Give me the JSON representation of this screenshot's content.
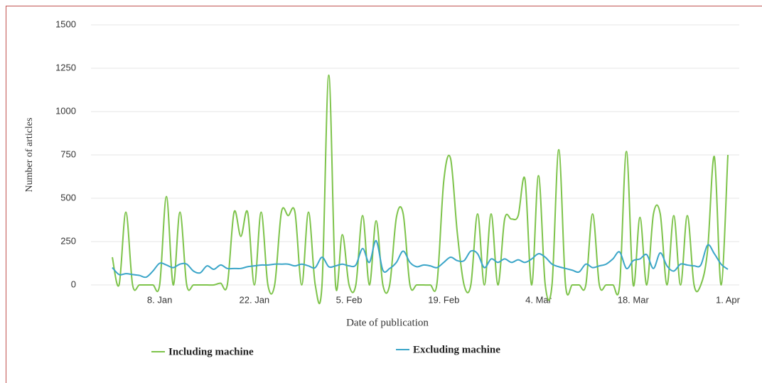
{
  "chart_data": {
    "type": "line",
    "y_label": "Number of  articles",
    "x_label": "Date of publication",
    "categories": [
      null,
      null,
      null,
      null,
      null,
      null,
      null,
      "8. Jan",
      null,
      null,
      null,
      null,
      null,
      null,
      null,
      null,
      null,
      null,
      null,
      null,
      null,
      "22. Jan",
      null,
      null,
      null,
      null,
      null,
      null,
      null,
      null,
      null,
      null,
      null,
      null,
      null,
      "5. Feb",
      null,
      null,
      null,
      null,
      null,
      null,
      null,
      null,
      null,
      null,
      null,
      null,
      null,
      "19. Feb",
      null,
      null,
      null,
      null,
      null,
      null,
      null,
      null,
      null,
      null,
      null,
      null,
      null,
      "4. Mar",
      null,
      null,
      null,
      null,
      null,
      null,
      null,
      null,
      null,
      null,
      null,
      null,
      null,
      "18. Mar",
      null,
      null,
      null,
      null,
      null,
      null,
      null,
      null,
      null,
      null,
      null,
      null,
      null,
      "1. Apr"
    ],
    "series": [
      {
        "name": "Including machine",
        "color": "#7dc34a",
        "values": [
          160,
          0,
          420,
          0,
          0,
          0,
          0,
          0,
          510,
          0,
          420,
          0,
          0,
          0,
          0,
          0,
          10,
          0,
          420,
          280,
          420,
          0,
          420,
          0,
          0,
          420,
          400,
          420,
          0,
          420,
          0,
          0,
          1210,
          0,
          290,
          0,
          0,
          400,
          0,
          370,
          0,
          0,
          390,
          410,
          0,
          0,
          0,
          0,
          10,
          600,
          730,
          300,
          0,
          0,
          410,
          0,
          410,
          0,
          380,
          380,
          400,
          610,
          0,
          630,
          0,
          0,
          780,
          0,
          0,
          0,
          0,
          410,
          0,
          0,
          0,
          0,
          770,
          0,
          390,
          0,
          410,
          410,
          0,
          400,
          0,
          400,
          0,
          0,
          200,
          740,
          0,
          750
        ]
      },
      {
        "name": "Excluding machine",
        "color": "#3aa5c8",
        "values": [
          100,
          60,
          65,
          60,
          55,
          45,
          80,
          125,
          115,
          100,
          120,
          120,
          80,
          70,
          110,
          90,
          115,
          95,
          95,
          95,
          105,
          110,
          115,
          115,
          120,
          120,
          120,
          110,
          120,
          110,
          100,
          160,
          105,
          110,
          120,
          110,
          115,
          210,
          130,
          255,
          85,
          95,
          130,
          195,
          130,
          105,
          115,
          110,
          100,
          130,
          160,
          140,
          140,
          195,
          180,
          100,
          150,
          130,
          150,
          130,
          145,
          130,
          150,
          180,
          160,
          120,
          105,
          95,
          85,
          75,
          120,
          100,
          110,
          120,
          150,
          190,
          95,
          140,
          150,
          175,
          95,
          185,
          110,
          80,
          120,
          115,
          110,
          115,
          230,
          180,
          120,
          90
        ]
      }
    ],
    "ylim": [
      0,
      1500
    ],
    "yticks": [
      0,
      250,
      500,
      750,
      1000,
      1250,
      1500
    ],
    "grid": true
  }
}
